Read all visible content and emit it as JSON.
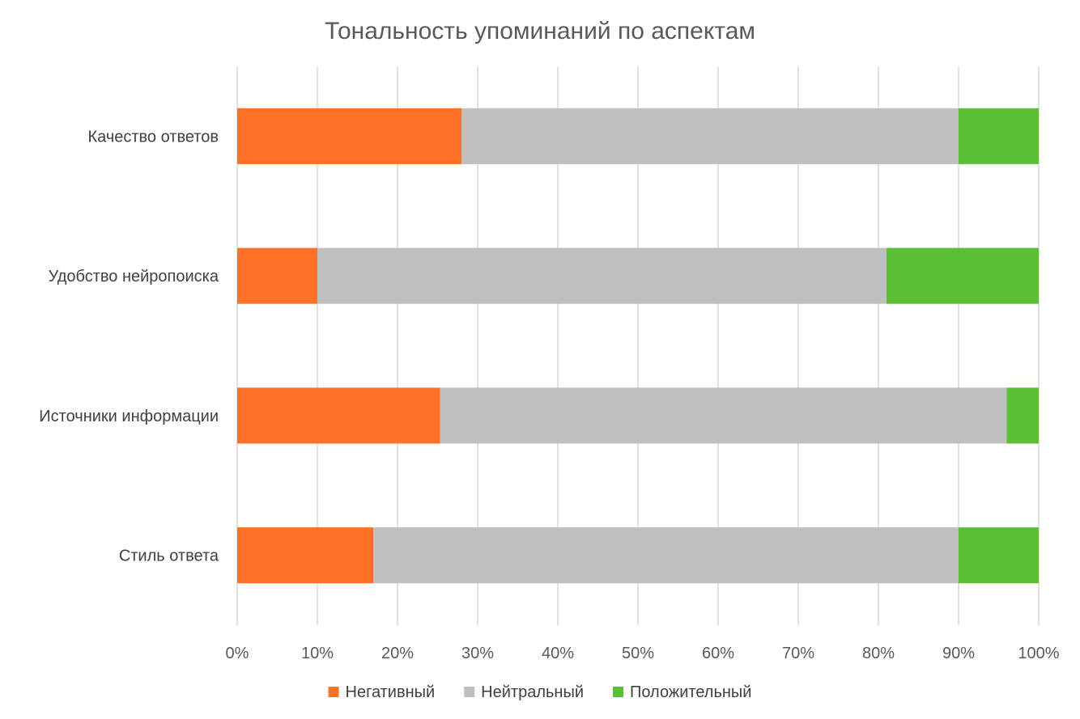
{
  "chart_data": {
    "type": "bar",
    "orientation": "horizontal",
    "stacked": "percent",
    "title": "Тональность упоминаний по аспектам",
    "categories": [
      "Качество ответов",
      "Удобство нейропоиска",
      "Источники информации",
      "Стиль ответа"
    ],
    "series": [
      {
        "name": "Негативный",
        "color": "#ff7126",
        "values": [
          28,
          10,
          25.3,
          17
        ]
      },
      {
        "name": "Нейтральный",
        "color": "#bfbfbf",
        "values": [
          62,
          71,
          70.7,
          73
        ]
      },
      {
        "name": "Положительный",
        "color": "#5abf35",
        "values": [
          10,
          19,
          4,
          10
        ]
      }
    ],
    "xlim": [
      0,
      100
    ],
    "xticks": [
      "0%",
      "10%",
      "20%",
      "30%",
      "40%",
      "50%",
      "60%",
      "70%",
      "80%",
      "90%",
      "100%"
    ],
    "grid": true,
    "legend": "bottom"
  }
}
